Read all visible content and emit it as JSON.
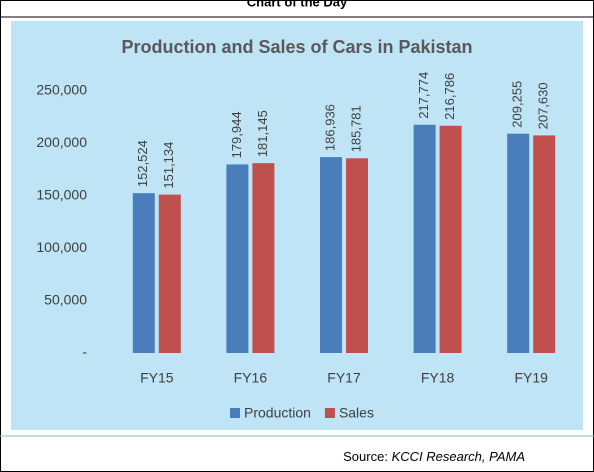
{
  "header": {
    "title": "Chart of the Day"
  },
  "chart_data": {
    "type": "bar",
    "title": "Production and Sales of Cars in Pakistan",
    "categories": [
      "FY15",
      "FY16",
      "FY17",
      "FY18",
      "FY19"
    ],
    "series": [
      {
        "name": "Production",
        "color": "#4a7ebb",
        "values": [
          152524,
          179944,
          186936,
          217774,
          209255
        ],
        "value_labels": [
          "152,524",
          "179,944",
          "186,936",
          "217,774",
          "209,255"
        ]
      },
      {
        "name": "Sales",
        "color": "#c0504d",
        "values": [
          151134,
          181145,
          185781,
          216786,
          207630
        ],
        "value_labels": [
          "151,134",
          "181,145",
          "185,781",
          "216,786",
          "207,630"
        ]
      }
    ],
    "ylim": [
      0,
      250000
    ],
    "yticks": [
      {
        "value": 0,
        "label": "-"
      },
      {
        "value": 50000,
        "label": "50,000"
      },
      {
        "value": 100000,
        "label": "100,000"
      },
      {
        "value": 150000,
        "label": "150,000"
      },
      {
        "value": 200000,
        "label": "200,000"
      },
      {
        "value": 250000,
        "label": "250,000"
      }
    ],
    "legend": "bottom"
  },
  "footer": {
    "source_label": "Source:",
    "source": "KCCI Research, PAMA"
  }
}
